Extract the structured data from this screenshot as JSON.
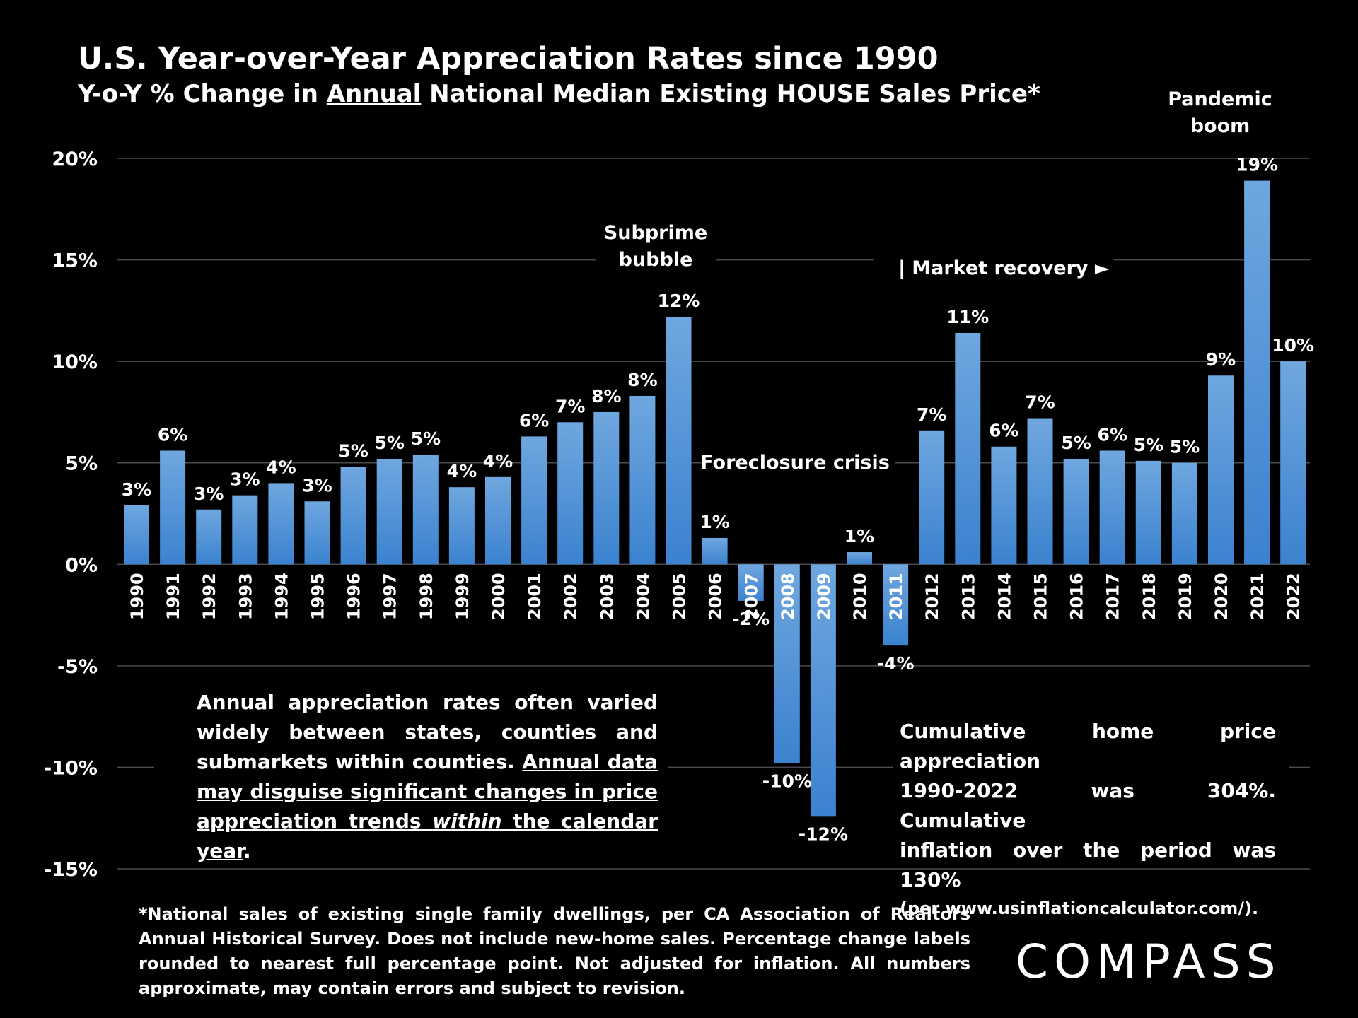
{
  "title": "U.S. Year-over-Year Appreciation Rates since 1990",
  "subtitle": {
    "pre": "Y-o-Y % Change in ",
    "underlined": "Annual",
    "post": " National Median Existing HOUSE Sales Price*"
  },
  "colors": {
    "bar_top": "#6fa7df",
    "bar_bottom": "#3b82cf",
    "grid": "#4a4a4a",
    "background": "#000000"
  },
  "chart_data": {
    "type": "bar",
    "categories": [
      "1990",
      "1991",
      "1992",
      "1993",
      "1994",
      "1995",
      "1996",
      "1997",
      "1998",
      "1999",
      "2000",
      "2001",
      "2002",
      "2003",
      "2004",
      "2005",
      "2006",
      "2007",
      "2008",
      "2009",
      "2010",
      "2011",
      "2012",
      "2013",
      "2014",
      "2015",
      "2016",
      "2017",
      "2018",
      "2019",
      "2020",
      "2021",
      "2022"
    ],
    "values": [
      2.9,
      5.6,
      2.7,
      3.4,
      4.0,
      3.1,
      4.8,
      5.2,
      5.4,
      3.8,
      4.3,
      6.3,
      7.0,
      7.5,
      8.3,
      12.2,
      1.3,
      -1.8,
      -9.8,
      -12.4,
      0.6,
      -4.0,
      6.6,
      11.4,
      5.8,
      7.2,
      5.2,
      5.6,
      5.1,
      5.0,
      9.3,
      18.9,
      10.0
    ],
    "data_labels": [
      "3%",
      "6%",
      "3%",
      "3%",
      "4%",
      "3%",
      "5%",
      "5%",
      "5%",
      "4%",
      "4%",
      "6%",
      "7%",
      "8%",
      "8%",
      "12%",
      "1%",
      "-2%",
      "-10%",
      "-12%",
      "1%",
      "-4%",
      "7%",
      "11%",
      "6%",
      "7%",
      "5%",
      "6%",
      "5%",
      "5%",
      "9%",
      "19%",
      "10%"
    ],
    "ylim": [
      -15,
      20
    ],
    "yticks": [
      "20%",
      "15%",
      "10%",
      "5%",
      "0%",
      "-5%",
      "-10%",
      "-15%"
    ],
    "ytick_values": [
      20,
      15,
      10,
      5,
      0,
      -5,
      -10,
      -15
    ],
    "grid": true,
    "annotations": [
      {
        "lines": [
          "Subprime",
          "bubble"
        ]
      },
      {
        "lines": [
          "| Market recovery ►"
        ]
      },
      {
        "lines": [
          "Foreclosure crisis"
        ]
      },
      {
        "lines": [
          "Pandemic",
          "boom"
        ]
      }
    ]
  },
  "note_left": {
    "lines": [
      "Annual appreciation rates often varied",
      "widely between states, counties and",
      "submarkets within counties."
    ],
    "underlined_a": "Annual data",
    "underlined_b": "may disguise significant changes in price",
    "underlined_c": "appreciation trends ",
    "underlined_italic": "within",
    "underlined_d": " the calendar year",
    "end": "."
  },
  "note_right": {
    "lines": [
      "Cumulative home price appreciation",
      "1990-2022 was 304%. Cumulative",
      "inflation over the period was 130%"
    ],
    "small": "(per www.usinflationcalculator.com/)."
  },
  "footnote": "*National sales of existing single family dwellings, per CA Association of Realtors Annual Historical Survey. Does not include new-home sales. Percentage change labels rounded to nearest full percentage point. Not adjusted for inflation. All numbers approximate, may contain errors and subject to revision.",
  "logo": "COMPASS"
}
